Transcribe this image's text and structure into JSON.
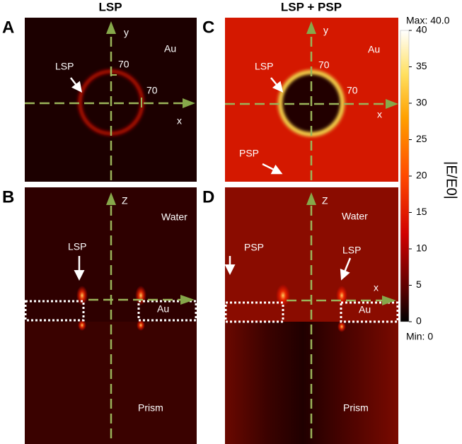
{
  "column_titles": [
    "LSP",
    "LSP + PSP"
  ],
  "panels": [
    {
      "letter": "A",
      "texts": [
        "y",
        "x",
        "Au",
        "LSP",
        "70",
        "70"
      ]
    },
    {
      "letter": "B",
      "texts": [
        "Z",
        "Water",
        "LSP",
        "Au",
        "Prism"
      ]
    },
    {
      "letter": "C",
      "texts": [
        "y",
        "x",
        "Au",
        "LSP",
        "70",
        "70",
        "PSP"
      ]
    },
    {
      "letter": "D",
      "texts": [
        "Z",
        "Water",
        "PSP",
        "LSP",
        "x",
        "Au",
        "Prism"
      ]
    }
  ],
  "colorbar": {
    "max_label": "Max: 40.0",
    "min_label": "Min: 0",
    "label": "|E/E0|",
    "lim": [
      0,
      40
    ],
    "ticks": [
      0,
      5,
      10,
      15,
      20,
      25,
      30,
      35,
      40
    ]
  }
}
